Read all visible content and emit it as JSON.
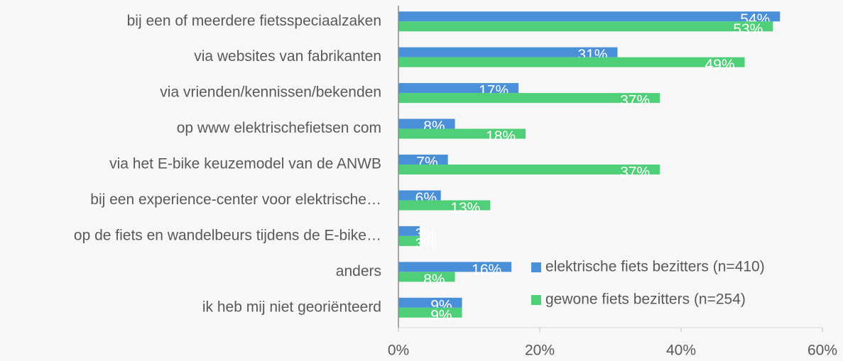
{
  "chart_data": {
    "type": "bar",
    "orientation": "horizontal",
    "categories": [
      "bij een of meerdere fietsspeciaalzaken",
      "via websites van fabrikanten",
      "via vrienden/kennissen/bekenden",
      "op www elektrischefietsen com",
      "via het E-bike keuzemodel van de ANWB ",
      "bij een experience-center voor elektrische…",
      "op de fiets en wandelbeurs tijdens de E-bike…",
      "anders",
      "ik heb mij niet georiënteerd"
    ],
    "series": [
      {
        "name": "elektrische fiets bezitters (n=410)",
        "color": "#4a90d9",
        "values": [
          54,
          31,
          17,
          8,
          7,
          6,
          3,
          16,
          9
        ],
        "value_labels": [
          "54%",
          "31%",
          "17%",
          "8%",
          "7%",
          "6%",
          "3%",
          "16%",
          "9%"
        ]
      },
      {
        "name": "gewone fiets bezitters (n=254)",
        "color": "#4fcf78",
        "values": [
          53,
          49,
          37,
          18,
          37,
          13,
          3,
          8,
          9
        ],
        "value_labels": [
          "53%",
          "49%",
          "37%",
          "18%",
          "37%",
          "13%",
          "3%",
          "8%",
          "9%"
        ]
      }
    ],
    "xlim": [
      0,
      60
    ],
    "xticks": [
      {
        "value": 0,
        "label": "0%"
      },
      {
        "value": 20,
        "label": "20%"
      },
      {
        "value": 40,
        "label": "40%"
      },
      {
        "value": 60,
        "label": "60%"
      }
    ],
    "legend": "lower right"
  }
}
